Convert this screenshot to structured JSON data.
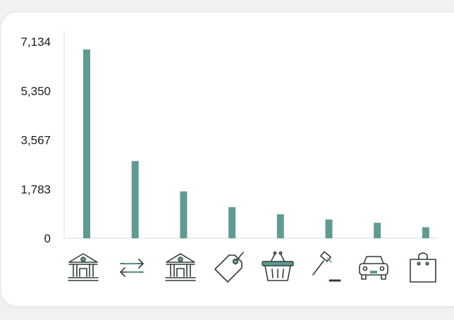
{
  "chart_data": {
    "type": "bar",
    "categories": [
      "bank-icon",
      "transfer-icon",
      "bank-icon",
      "price-tag-icon",
      "shopping-basket-icon",
      "auction-hammer-icon",
      "car-icon",
      "shopping-bag-icon"
    ],
    "values": [
      6850,
      2800,
      1700,
      1130,
      870,
      680,
      560,
      400
    ],
    "y_ticks": [
      "0",
      "1,783",
      "3,567",
      "5,350",
      "7,134"
    ],
    "y_tick_values": [
      0,
      1783,
      3567,
      5350,
      7134
    ],
    "ylim": [
      0,
      7134
    ],
    "bar_color": "#5f9b93",
    "grid": false,
    "legend": "none"
  }
}
